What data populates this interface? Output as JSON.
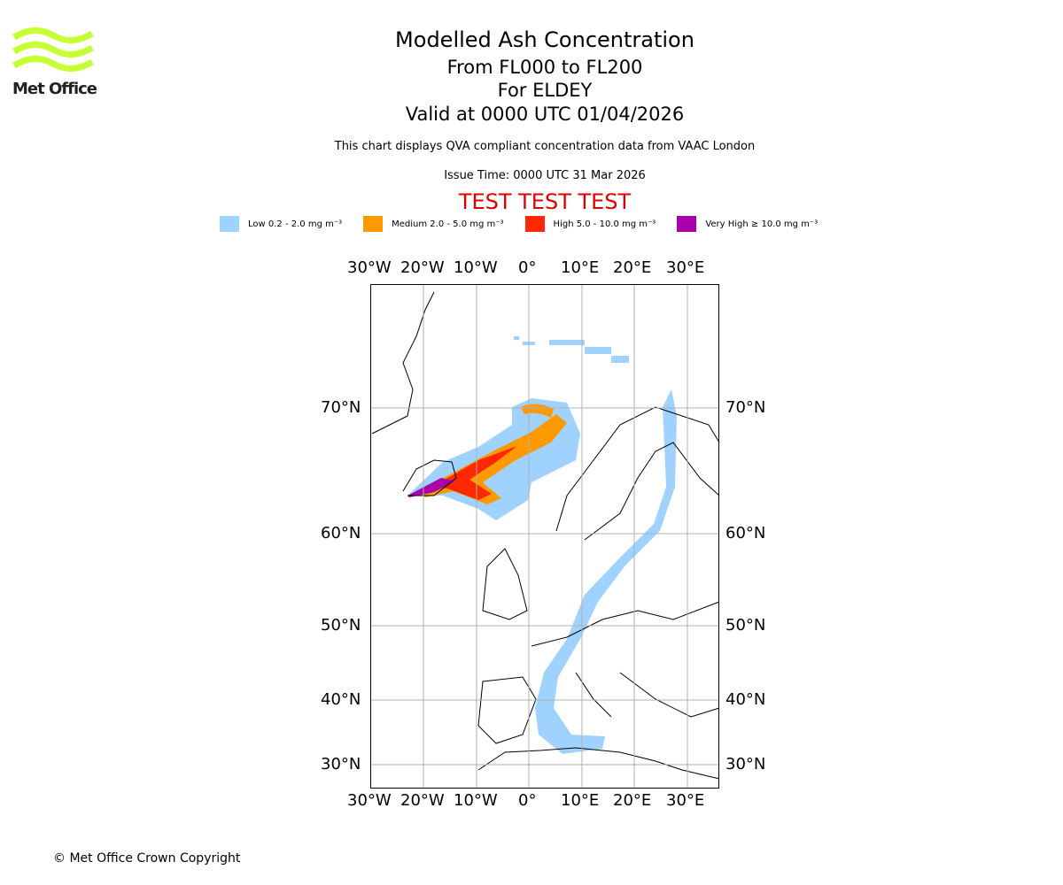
{
  "header": {
    "title": "Modelled Ash Concentration",
    "levels": "From FL000 to FL200",
    "location": "For ELDEY",
    "valid": "Valid at 0000 UTC 01/04/2026",
    "description": "This chart displays QVA compliant concentration data from VAAC London",
    "issue": "Issue Time: 0000 UTC 31 Mar 2026",
    "test_banner": "TEST TEST TEST"
  },
  "logo": {
    "text": "Met Office",
    "color": "#c8ff32"
  },
  "legend": [
    {
      "label": "Low 0.2 - 2.0 mg m⁻³",
      "color": "#a0d2ff"
    },
    {
      "label": "Medium 2.0 - 5.0 mg m⁻³",
      "color": "#ff9900"
    },
    {
      "label": "High 5.0 - 10.0 mg m⁻³",
      "color": "#ff2800"
    },
    {
      "label": "Very High ≥ 10.0 mg m⁻³",
      "color": "#aa00aa"
    }
  ],
  "map": {
    "lon_labels": [
      "30°W",
      "20°W",
      "10°W",
      "0°",
      "10°E",
      "20°E",
      "30°E"
    ],
    "lat_labels": [
      "70°N",
      "60°N",
      "50°N",
      "40°N",
      "30°N"
    ]
  },
  "footer": {
    "copyright": "© Met Office Crown Copyright"
  }
}
